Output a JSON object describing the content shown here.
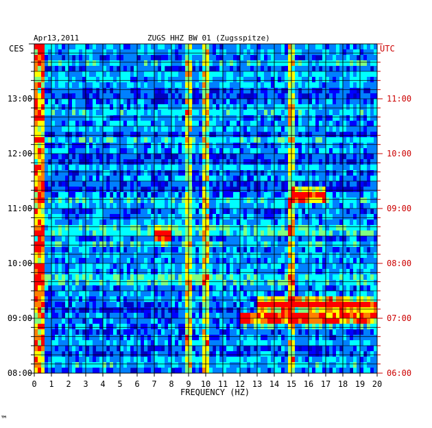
{
  "header": {
    "date": "Apr13,2011",
    "station": "ZUGS HHZ BW 01 (Zugsspitze)"
  },
  "axes": {
    "left_tz": "CES",
    "right_tz": "UTC",
    "xlabel": "FREQUENCY (HZ)"
  },
  "colors": {
    "left_axis": "#000000",
    "right_axis": "#cc0000",
    "background_power": "#0000c0",
    "grid": "#000000"
  },
  "footer": {
    "mark": "™"
  },
  "chart_data": {
    "type": "heatmap",
    "title": "ZUGS HHZ BW 01 (Zugsspitze)",
    "xlabel": "FREQUENCY (HZ)",
    "xlim": [
      0,
      20
    ],
    "x_ticks": [
      0,
      1,
      2,
      3,
      4,
      5,
      6,
      7,
      8,
      9,
      10,
      11,
      12,
      13,
      14,
      15,
      16,
      17,
      18,
      19,
      20
    ],
    "y_time_range_local": [
      "08:00",
      "14:00"
    ],
    "y_ticks_left": [
      "13:00",
      "12:00",
      "11:00",
      "10:00",
      "09:00",
      "08:00"
    ],
    "y_ticks_right": [
      "11:00",
      "10:00",
      "09:00",
      "08:00",
      "07:00",
      "06:00"
    ],
    "colormap": [
      "#00007f",
      "#0000ff",
      "#0080ff",
      "#00ffff",
      "#80ff80",
      "#ffff00",
      "#ff8000",
      "#ff0000"
    ],
    "features": [
      {
        "name": "low-frequency band",
        "freq_hz": [
          0,
          0.6
        ],
        "level": "high"
      },
      {
        "name": "line 9 Hz",
        "freq_hz": 9.0,
        "level": "medium"
      },
      {
        "name": "line 10 Hz",
        "freq_hz": 10.0,
        "level": "medium"
      },
      {
        "name": "line 15 Hz",
        "freq_hz": 15.0,
        "level": "medium"
      },
      {
        "name": "event 07:00 UTC",
        "freq_hz": [
          12,
          20
        ],
        "time_utc": "07:00",
        "level": "high"
      },
      {
        "name": "event 07:15 UTC",
        "freq_hz": [
          13,
          20
        ],
        "time_utc": "07:15",
        "level": "high"
      },
      {
        "name": "event 09:15 UTC",
        "freq_hz": [
          15,
          17
        ],
        "time_utc": "09:15",
        "level": "high"
      },
      {
        "name": "event 08:30 UTC",
        "freq_hz": [
          7,
          8
        ],
        "time_utc": "08:30",
        "level": "high"
      }
    ]
  }
}
